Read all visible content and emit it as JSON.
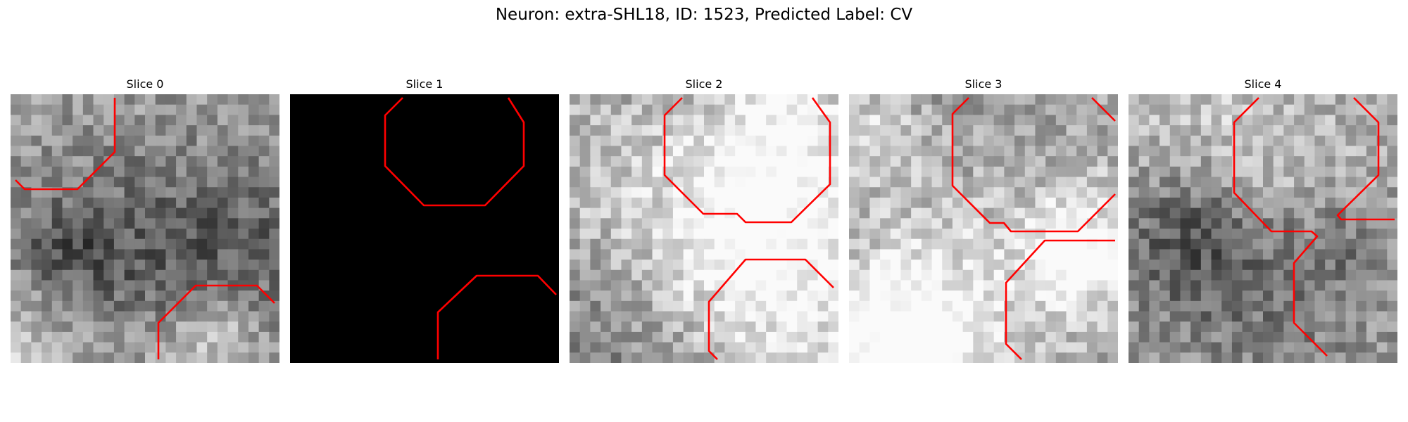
{
  "figure": {
    "title": "Neuron: extra-SHL18, ID: 1523, Predicted Label: CV"
  },
  "panels": [
    {
      "title": "Slice 0",
      "dark": false,
      "seed": 11
    },
    {
      "title": "Slice 1",
      "dark": true,
      "seed": 0
    },
    {
      "title": "Slice 2",
      "dark": false,
      "seed": 27
    },
    {
      "title": "Slice 3",
      "dark": false,
      "seed": 43
    },
    {
      "title": "Slice 4",
      "dark": false,
      "seed": 59
    }
  ],
  "colors": {
    "contour": "#ff0000",
    "background": "#ffffff",
    "empty_slice": "#000000"
  }
}
